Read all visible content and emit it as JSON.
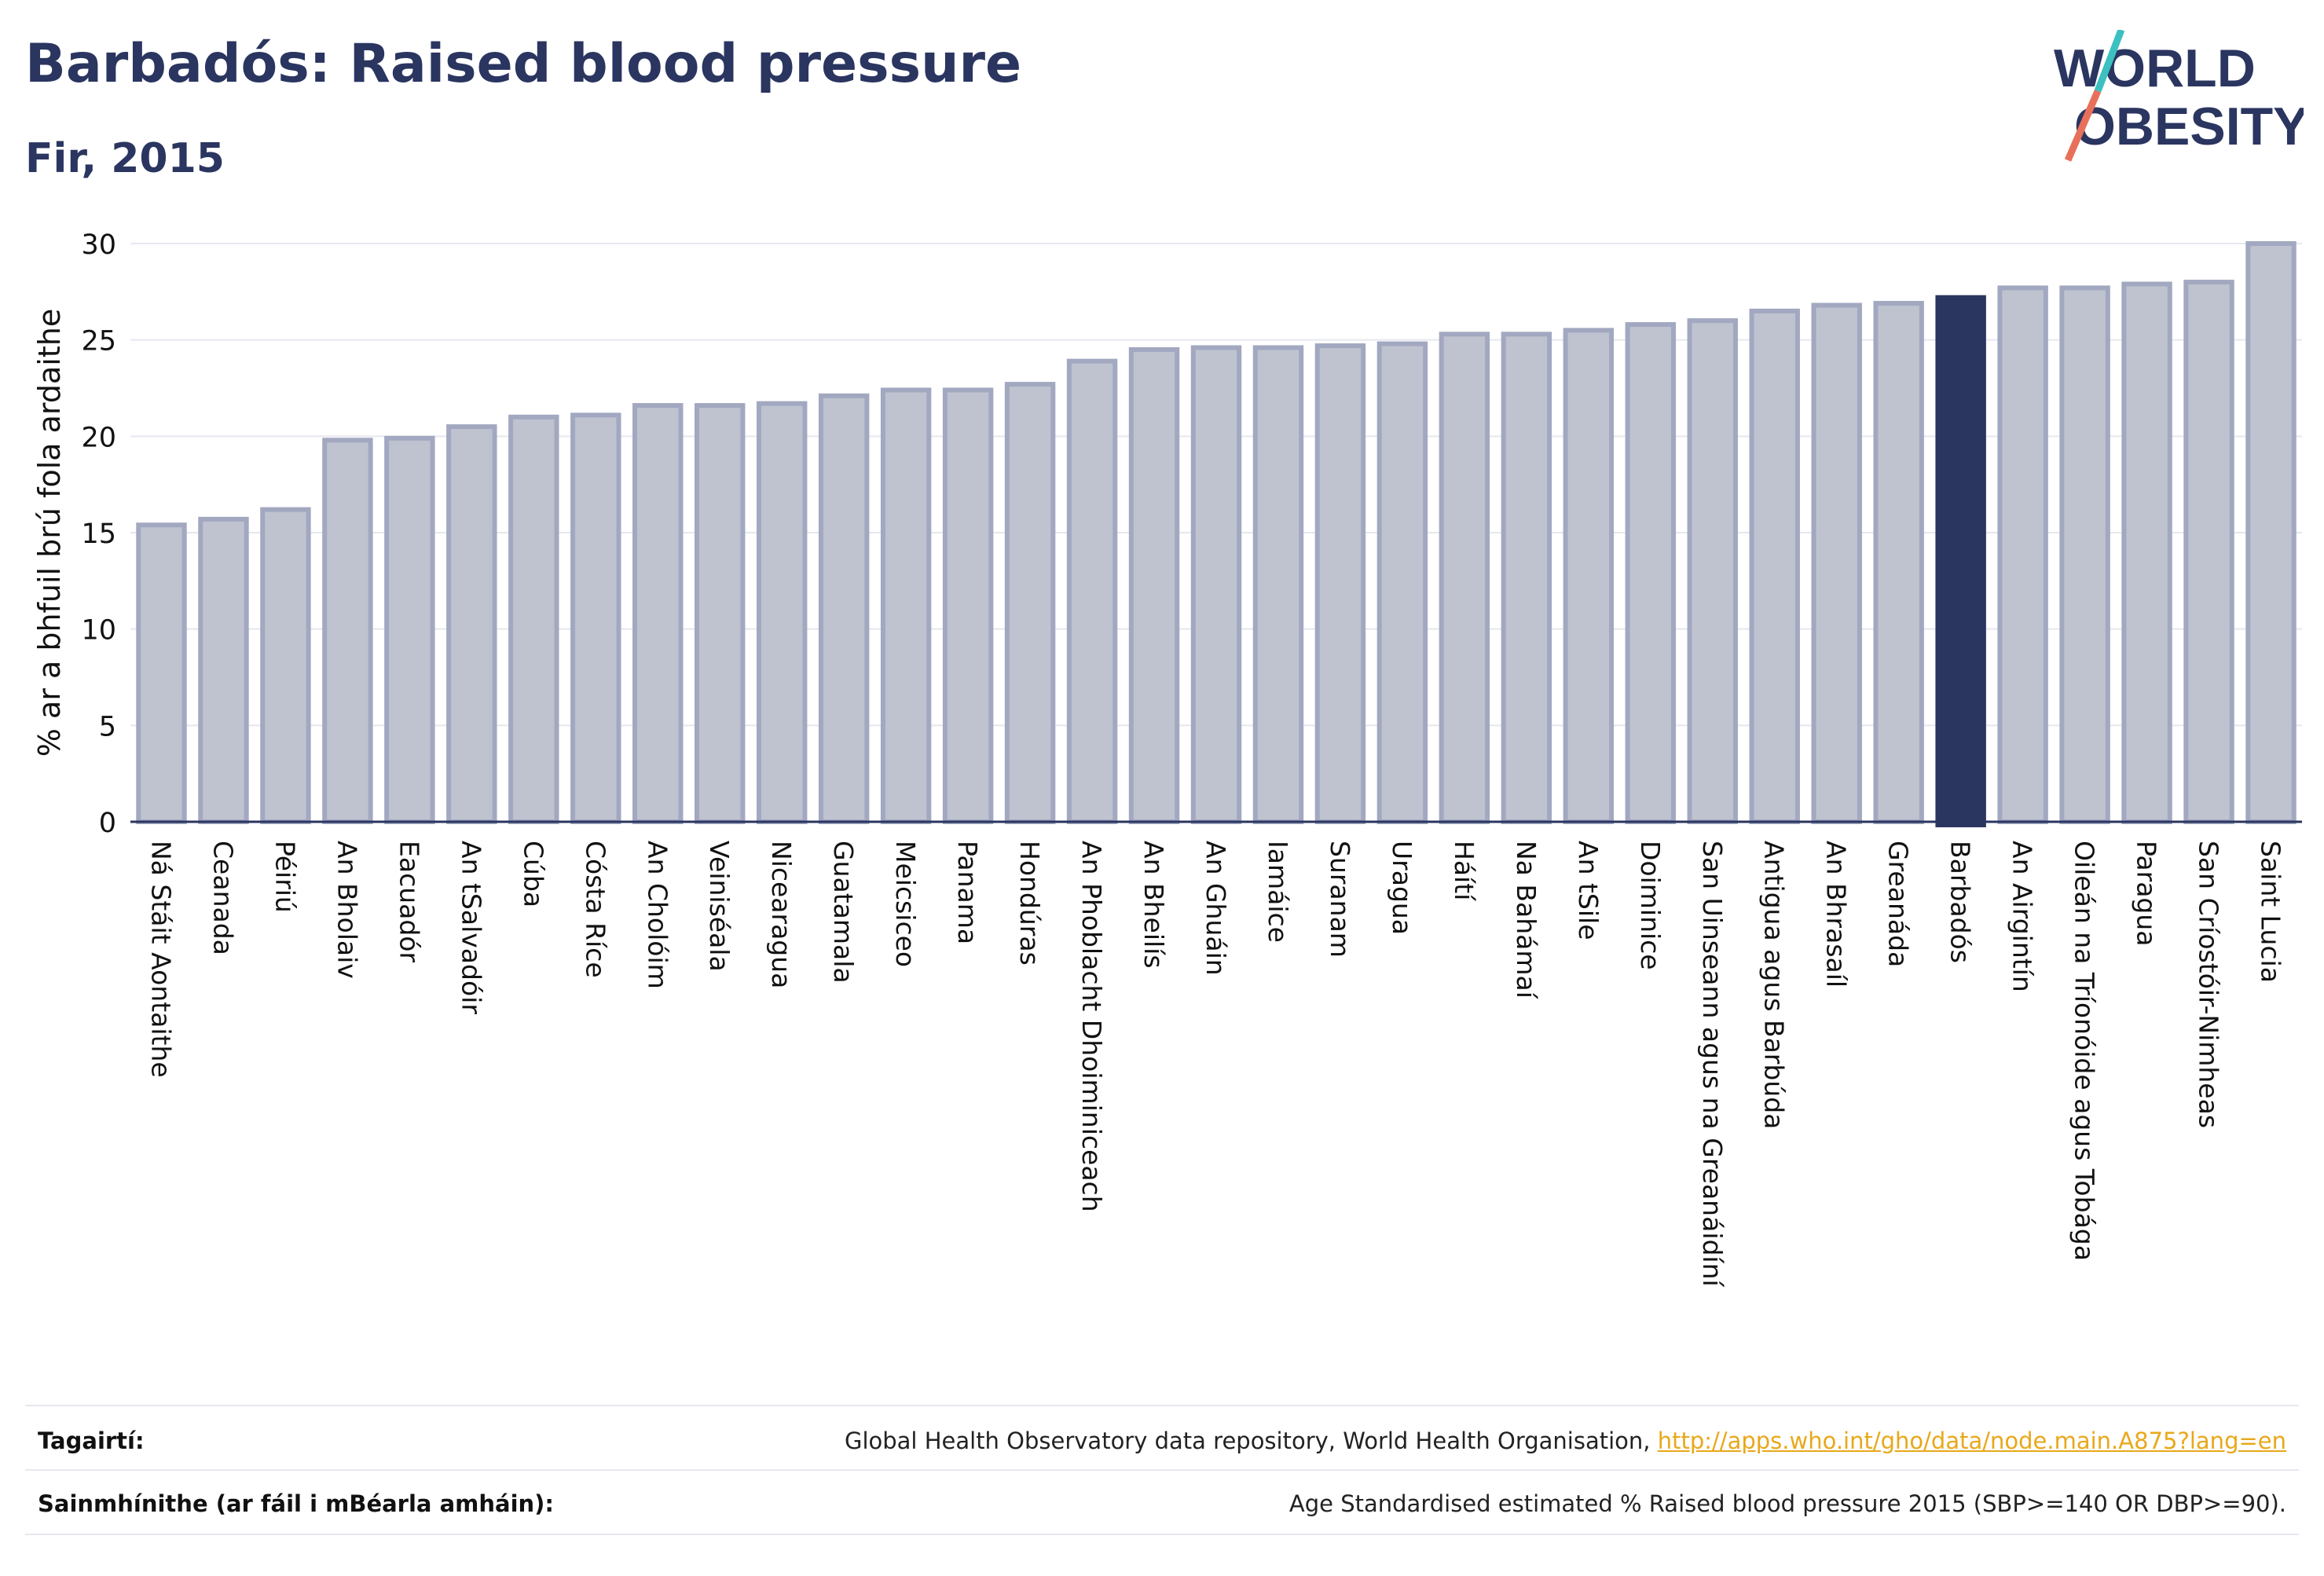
{
  "header": {
    "title": "Barbadós: Raised blood pressure",
    "subtitle": "Fir, 2015"
  },
  "logo": {
    "line1": "WORLD",
    "line2": "OBESITY"
  },
  "chart_data": {
    "type": "bar",
    "ylabel": "% ar a bhfuil brú fola ardaithe",
    "ylim": [
      0,
      30
    ],
    "yticks": [
      0,
      5,
      10,
      15,
      20,
      25,
      30
    ],
    "grid": true,
    "highlight": "Barbadós",
    "colors": {
      "bar": "#bfc3d0",
      "bar_edge": "#a2a8c0",
      "highlight": "#2a3560"
    },
    "categories": [
      "Ná Stáit Aontaithe",
      "Ceanada",
      "Péiriú",
      "An Bholaiv",
      "Eacuadór",
      "An tSalvadóir",
      "Cúba",
      "Cósta Ríce",
      "An Cholóim",
      "Veiniséala",
      "Nicearagua",
      "Guatamala",
      "Meicsiceo",
      "Panama",
      "Hondúras",
      "An Phoblacht Dhoiminiceach",
      "An Bheilís",
      "An Ghuáin",
      "Iamáice",
      "Suranam",
      "Uragua",
      "Háítí",
      "Na Bahámaí",
      "An tSile",
      "Doiminice",
      "San Uinseann agus na Greanáidíní",
      "Antigua agus Barbúda",
      "An Bhrasaíl",
      "Greanáda",
      "Barbadós",
      "An Airgintín",
      "Oileán na Tríonóide agus Tobága",
      "Paragua",
      "San Críostóir-Nimheas",
      "Saint Lucia"
    ],
    "values": [
      15.4,
      15.7,
      16.2,
      19.8,
      19.9,
      20.5,
      21.0,
      21.1,
      21.6,
      21.6,
      21.7,
      22.1,
      22.4,
      22.4,
      22.7,
      23.9,
      24.5,
      24.6,
      24.6,
      24.7,
      24.8,
      25.3,
      25.3,
      25.5,
      25.8,
      26.0,
      26.5,
      26.8,
      26.9,
      27.2,
      27.7,
      27.7,
      27.9,
      28.0,
      30.0
    ]
  },
  "footer": {
    "references_label": "Tagairtí:",
    "references_text": "Global Health Observatory data repository, World Health Organisation,",
    "references_link": "http://apps.who.int/gho/data/node.main.A875?lang=en",
    "definitions_label": "Sainmhínithe (ar fáil i mBéarla amháin):",
    "definitions_text": "Age Standardised estimated % Raised blood pressure 2015 (SBP>=140 OR DBP>=90)."
  }
}
